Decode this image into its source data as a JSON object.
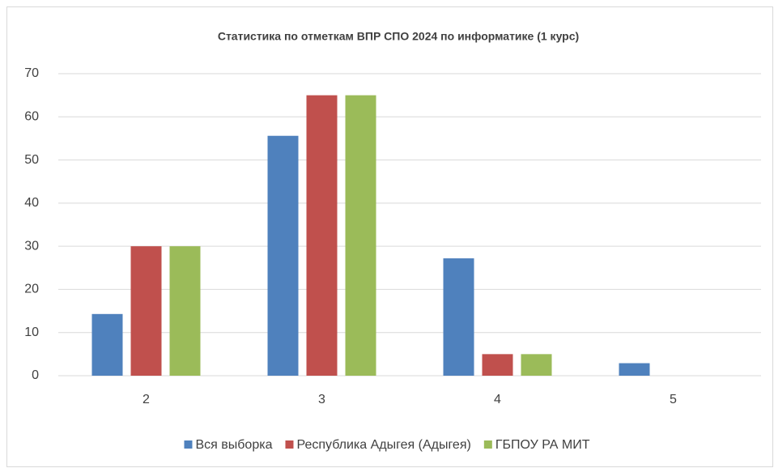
{
  "chart_data": {
    "type": "bar",
    "title": "Статистика по отметкам ВПР СПО 2024 по информатике (1 курс)",
    "categories": [
      "2",
      "3",
      "4",
      "5"
    ],
    "series": [
      {
        "name": "Вся выборка",
        "color": "#4f81bd",
        "values": [
          14.3,
          55.6,
          27.2,
          2.9
        ]
      },
      {
        "name": "Республика Адыгея (Адыгея)",
        "color": "#c0504d",
        "values": [
          30,
          65,
          5,
          0
        ]
      },
      {
        "name": "ГБПОУ РА МИТ",
        "color": "#9bbb59",
        "values": [
          30,
          65,
          5,
          0
        ]
      }
    ],
    "ylim": [
      0,
      70
    ],
    "yticks": [
      0,
      10,
      20,
      30,
      40,
      50,
      60,
      70
    ],
    "grid": true,
    "legend": "bottom"
  }
}
